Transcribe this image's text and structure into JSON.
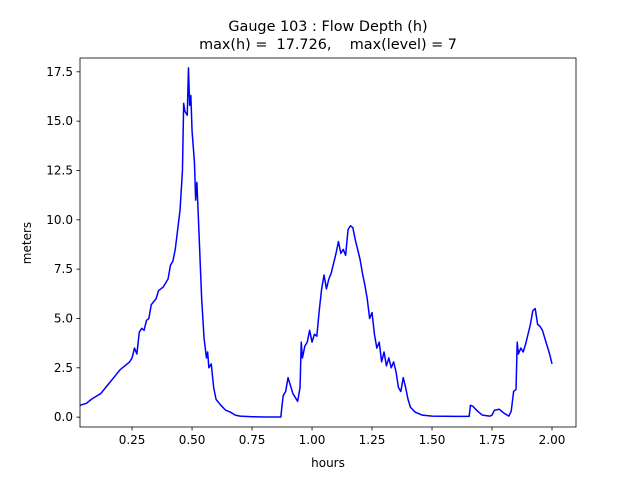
{
  "chart_data": {
    "type": "line",
    "title": "Gauge 103 : Flow Depth (h)",
    "subtitle": "max(h) =  17.726,    max(level) = 7",
    "x_label": "hours",
    "y_label": "meters",
    "xlim": [
      0.033,
      2.1
    ],
    "ylim": [
      -0.5,
      18.2
    ],
    "xticks": [
      0.25,
      {
        "value": 0.5,
        "label": "0.50"
      },
      0.75,
      {
        "value": 1,
        "label": "1.00"
      },
      1.25,
      {
        "value": 1.5,
        "label": "1.50"
      },
      1.75,
      {
        "value": 2,
        "label": "2.00"
      }
    ],
    "yticks": [
      {
        "value": 0,
        "label": "0.0"
      },
      2.5,
      {
        "value": 5,
        "label": "5.0"
      },
      7.5,
      {
        "value": 10,
        "label": "10.0"
      },
      12.5,
      {
        "value": 15,
        "label": "15.0"
      },
      17.5
    ],
    "grid": false,
    "x": [
      0.033,
      0.06,
      0.08,
      0.1,
      0.12,
      0.14,
      0.16,
      0.18,
      0.2,
      0.22,
      0.24,
      0.25,
      0.26,
      0.27,
      0.28,
      0.29,
      0.3,
      0.31,
      0.32,
      0.33,
      0.35,
      0.36,
      0.38,
      0.4,
      0.41,
      0.42,
      0.43,
      0.44,
      0.45,
      0.46,
      0.465,
      0.47,
      0.48,
      0.485,
      0.49,
      0.495,
      0.5,
      0.51,
      0.515,
      0.52,
      0.525,
      0.53,
      0.54,
      0.55,
      0.56,
      0.565,
      0.57,
      0.58,
      0.59,
      0.6,
      0.62,
      0.64,
      0.66,
      0.68,
      0.7,
      0.75,
      0.8,
      0.87,
      0.875,
      0.88,
      0.89,
      0.9,
      0.91,
      0.92,
      0.94,
      0.95,
      0.955,
      0.96,
      0.97,
      0.98,
      0.99,
      1.0,
      1.01,
      1.02,
      1.03,
      1.04,
      1.05,
      1.06,
      1.07,
      1.08,
      1.09,
      1.1,
      1.11,
      1.12,
      1.13,
      1.14,
      1.15,
      1.16,
      1.17,
      1.18,
      1.19,
      1.2,
      1.21,
      1.22,
      1.23,
      1.24,
      1.25,
      1.26,
      1.27,
      1.28,
      1.29,
      1.3,
      1.31,
      1.32,
      1.33,
      1.34,
      1.35,
      1.36,
      1.37,
      1.38,
      1.39,
      1.4,
      1.41,
      1.43,
      1.46,
      1.5,
      1.6,
      1.655,
      1.66,
      1.67,
      1.69,
      1.71,
      1.74,
      1.75,
      1.76,
      1.78,
      1.8,
      1.82,
      1.83,
      1.84,
      1.85,
      1.855,
      1.86,
      1.87,
      1.88,
      1.89,
      1.9,
      1.91,
      1.92,
      1.93,
      1.94,
      1.95,
      1.96,
      1.97,
      1.98,
      1.99,
      2.0
    ],
    "series": [
      {
        "color": "#0000ff",
        "values": [
          0.6,
          0.7,
          0.9,
          1.05,
          1.2,
          1.5,
          1.8,
          2.1,
          2.4,
          2.6,
          2.8,
          3.0,
          3.5,
          3.2,
          4.3,
          4.5,
          4.4,
          4.9,
          5.0,
          5.7,
          6.0,
          6.4,
          6.6,
          7.0,
          7.7,
          7.9,
          8.5,
          9.5,
          10.5,
          12.5,
          15.9,
          15.5,
          15.3,
          17.7,
          15.8,
          16.3,
          14.5,
          12.9,
          11.0,
          11.9,
          10.5,
          9.0,
          6.0,
          4.0,
          3.0,
          3.3,
          2.5,
          2.7,
          1.5,
          0.9,
          0.6,
          0.35,
          0.25,
          0.1,
          0.05,
          0.02,
          0.01,
          0.01,
          0.6,
          1.1,
          1.3,
          2.0,
          1.6,
          1.2,
          0.8,
          1.5,
          3.8,
          3.0,
          3.6,
          3.8,
          4.4,
          3.8,
          4.2,
          4.1,
          5.4,
          6.5,
          7.2,
          6.5,
          7.0,
          7.3,
          7.8,
          8.3,
          8.9,
          8.3,
          8.5,
          8.2,
          9.5,
          9.7,
          9.6,
          9.0,
          8.5,
          8.0,
          7.3,
          6.7,
          6.0,
          5.0,
          5.3,
          4.2,
          3.5,
          3.8,
          2.8,
          3.3,
          2.6,
          3.0,
          2.5,
          2.8,
          2.3,
          1.5,
          1.3,
          2.0,
          1.5,
          0.9,
          0.5,
          0.25,
          0.1,
          0.05,
          0.04,
          0.04,
          0.6,
          0.55,
          0.3,
          0.1,
          0.05,
          0.1,
          0.35,
          0.4,
          0.2,
          0.05,
          0.3,
          1.3,
          1.4,
          3.8,
          3.2,
          3.5,
          3.3,
          3.7,
          4.2,
          4.7,
          5.4,
          5.5,
          4.7,
          4.6,
          4.4,
          4.0,
          3.6,
          3.2,
          2.7
        ]
      }
    ]
  }
}
